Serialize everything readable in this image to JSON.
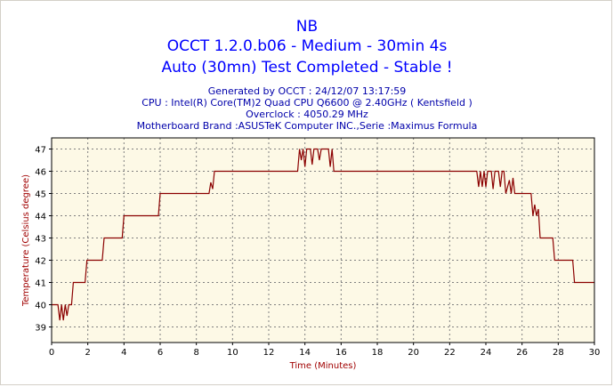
{
  "header": {
    "title_line1": "NB",
    "title_line2": "OCCT 1.2.0.b06 - Medium - 30min 4s",
    "title_line3": "Auto (30mn) Test Completed - Stable !",
    "generated": "Generated by OCCT : 24/12/07 13:17:59",
    "cpu": "CPU : Intel(R) Core(TM)2 Quad CPU Q6600 @ 2.40GHz ( Kentsfield )",
    "overclock": "Overclock : 4050.29 MHz",
    "motherboard": "Motherboard Brand :ASUSTeK Computer INC.,Serie :Maximus Formula"
  },
  "colors": {
    "title": "#0000ff",
    "info": "#0000aa",
    "plot_background": "#fdf9e6",
    "line": "#8b0000",
    "axis_title": "#a00000",
    "grid": "#808080"
  },
  "chart_data": {
    "type": "line",
    "xlabel": "Time (Minutes)",
    "ylabel": "Temperature (Celsius degree)",
    "xlim": [
      0,
      30
    ],
    "ylim": [
      38.3,
      47.5
    ],
    "x_ticks": [
      0,
      2,
      4,
      6,
      8,
      10,
      12,
      14,
      16,
      18,
      20,
      22,
      24,
      26,
      28,
      30
    ],
    "y_ticks": [
      39,
      40,
      41,
      42,
      43,
      44,
      45,
      46,
      47
    ],
    "grid": true,
    "series": [
      {
        "points": [
          [
            0,
            40
          ],
          [
            0.35,
            40
          ],
          [
            0.45,
            39.3
          ],
          [
            0.55,
            40
          ],
          [
            0.65,
            39.3
          ],
          [
            0.75,
            40
          ],
          [
            0.85,
            39.5
          ],
          [
            0.95,
            40
          ],
          [
            1.1,
            40
          ],
          [
            1.2,
            41
          ],
          [
            1.85,
            41
          ],
          [
            1.95,
            42
          ],
          [
            2.8,
            42
          ],
          [
            2.9,
            43
          ],
          [
            3.9,
            43
          ],
          [
            4.0,
            44
          ],
          [
            5.9,
            44
          ],
          [
            6.0,
            45
          ],
          [
            8.7,
            45
          ],
          [
            8.8,
            45.5
          ],
          [
            8.9,
            45.2
          ],
          [
            9.0,
            46
          ],
          [
            13.6,
            46
          ],
          [
            13.7,
            47
          ],
          [
            13.8,
            46.5
          ],
          [
            13.9,
            47
          ],
          [
            14.0,
            46.2
          ],
          [
            14.1,
            47
          ],
          [
            14.3,
            47
          ],
          [
            14.4,
            46.3
          ],
          [
            14.5,
            47
          ],
          [
            14.7,
            47
          ],
          [
            14.8,
            46.5
          ],
          [
            14.9,
            47
          ],
          [
            15.3,
            47
          ],
          [
            15.4,
            46.2
          ],
          [
            15.5,
            47
          ],
          [
            15.6,
            46
          ],
          [
            23.5,
            46
          ],
          [
            23.6,
            45.3
          ],
          [
            23.7,
            46
          ],
          [
            23.8,
            45.3
          ],
          [
            23.9,
            46
          ],
          [
            24.0,
            45.3
          ],
          [
            24.1,
            46
          ],
          [
            24.3,
            46
          ],
          [
            24.4,
            45.2
          ],
          [
            24.5,
            46
          ],
          [
            24.7,
            46
          ],
          [
            24.8,
            45.3
          ],
          [
            24.9,
            46
          ],
          [
            25.0,
            46
          ],
          [
            25.1,
            45
          ],
          [
            25.3,
            45.6
          ],
          [
            25.4,
            45
          ],
          [
            25.5,
            45.7
          ],
          [
            25.6,
            45
          ],
          [
            26.5,
            45
          ],
          [
            26.6,
            44
          ],
          [
            26.7,
            44.5
          ],
          [
            26.8,
            44
          ],
          [
            26.9,
            44.3
          ],
          [
            27.0,
            43
          ],
          [
            27.7,
            43
          ],
          [
            27.8,
            42
          ],
          [
            28.8,
            42
          ],
          [
            28.9,
            41
          ],
          [
            30,
            41
          ]
        ]
      }
    ]
  }
}
